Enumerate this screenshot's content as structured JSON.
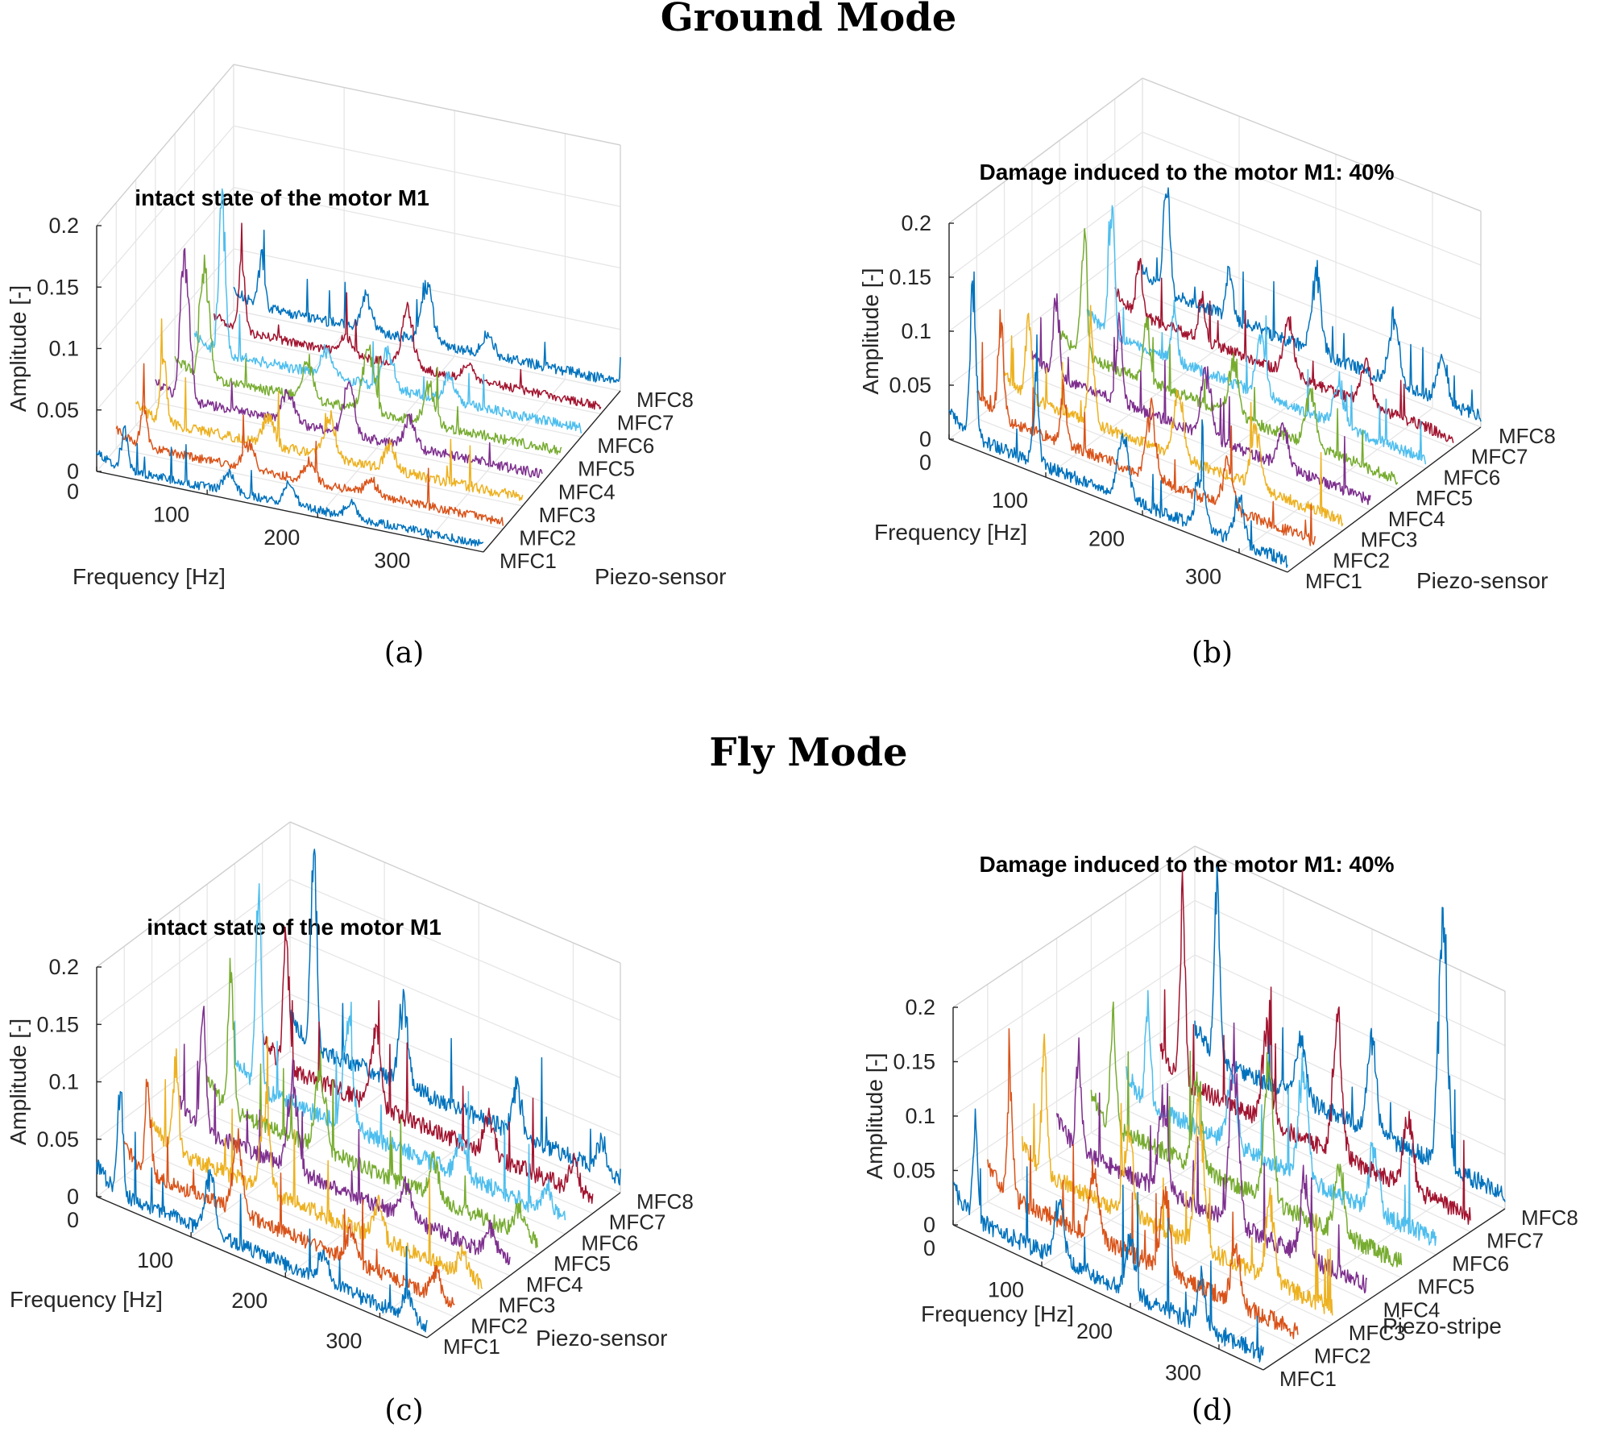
{
  "sections": {
    "ground_title": "Ground Mode",
    "fly_title": "Fly Mode"
  },
  "colors": {
    "MFC1": "#0072BD",
    "MFC2": "#D95319",
    "MFC3": "#EDB120",
    "MFC4": "#7E2F8E",
    "MFC5": "#77AC30",
    "MFC6": "#4DBEEE",
    "MFC7": "#A2142F",
    "MFC8": "#0072BD"
  },
  "chart_data": [
    {
      "id": "a",
      "type": "line",
      "caption": "(a)",
      "title": "intact state of the motor M1",
      "xlabel": "Frequency [Hz]",
      "ylabel": "Piezo-sensor",
      "zlabel": "Amplitude [-]",
      "xlim": [
        0,
        350
      ],
      "zlim": [
        0,
        0.2
      ],
      "x_ticks": [
        "0",
        "100",
        "200",
        "300"
      ],
      "z_ticks": [
        "0",
        "0.05",
        "0.1",
        "0.15",
        "0.2"
      ],
      "categories": [
        "MFC1",
        "MFC2",
        "MFC3",
        "MFC4",
        "MFC5",
        "MFC6",
        "MFC7",
        "MFC8"
      ],
      "series": [
        {
          "name": "MFC1",
          "noise": 0.006,
          "peaks": [
            [
              25,
              0.032
            ],
            [
              120,
              0.014
            ],
            [
              175,
              0.015
            ],
            [
              230,
              0.012
            ]
          ]
        },
        {
          "name": "MFC2",
          "noise": 0.006,
          "peaks": [
            [
              25,
              0.03
            ],
            [
              120,
              0.02
            ],
            [
              175,
              0.016
            ],
            [
              230,
              0.012
            ]
          ]
        },
        {
          "name": "MFC3",
          "noise": 0.007,
          "peaks": [
            [
              25,
              0.05
            ],
            [
              120,
              0.022
            ],
            [
              175,
              0.035
            ],
            [
              230,
              0.018
            ]
          ]
        },
        {
          "name": "MFC4",
          "noise": 0.007,
          "peaks": [
            [
              25,
              0.1
            ],
            [
              30,
              0.06
            ],
            [
              120,
              0.025
            ],
            [
              175,
              0.04
            ],
            [
              230,
              0.022
            ]
          ]
        },
        {
          "name": "MFC5",
          "noise": 0.007,
          "peaks": [
            [
              25,
              0.075
            ],
            [
              30,
              0.045
            ],
            [
              120,
              0.03
            ],
            [
              175,
              0.05
            ],
            [
              230,
              0.03
            ]
          ]
        },
        {
          "name": "MFC6",
          "noise": 0.007,
          "peaks": [
            [
              25,
              0.12
            ],
            [
              120,
              0.02
            ],
            [
              175,
              0.03
            ],
            [
              230,
              0.02
            ]
          ]
        },
        {
          "name": "MFC7",
          "noise": 0.006,
          "peaks": [
            [
              25,
              0.05
            ],
            [
              120,
              0.015
            ],
            [
              175,
              0.045
            ],
            [
              230,
              0.012
            ]
          ]
        },
        {
          "name": "MFC8",
          "noise": 0.007,
          "peaks": [
            [
              25,
              0.04
            ],
            [
              120,
              0.025
            ],
            [
              175,
              0.05
            ],
            [
              230,
              0.015
            ]
          ]
        }
      ]
    },
    {
      "id": "b",
      "type": "line",
      "caption": "(b)",
      "title": "Damage induced to the motor M1: 40%",
      "xlabel": "Frequency [Hz]",
      "ylabel": "Piezo-sensor",
      "zlabel": "Amplitude [-]",
      "xlim": [
        0,
        350
      ],
      "zlim": [
        0,
        0.2
      ],
      "x_ticks": [
        "0",
        "100",
        "200",
        "300"
      ],
      "z_ticks": [
        "0",
        "0.05",
        "0.1",
        "0.15",
        "0.2"
      ],
      "categories": [
        "MFC1",
        "MFC2",
        "MFC3",
        "MFC4",
        "MFC5",
        "MFC6",
        "MFC7",
        "MFC8"
      ],
      "series": [
        {
          "name": "MFC1",
          "noise": 0.01,
          "peaks": [
            [
              25,
              0.14
            ],
            [
              90,
              0.07
            ],
            [
              180,
              0.06
            ],
            [
              260,
              0.05
            ],
            [
              300,
              0.04
            ]
          ]
        },
        {
          "name": "MFC2",
          "noise": 0.009,
          "peaks": [
            [
              25,
              0.09
            ],
            [
              90,
              0.05
            ],
            [
              180,
              0.06
            ],
            [
              260,
              0.04
            ]
          ]
        },
        {
          "name": "MFC3",
          "noise": 0.009,
          "peaks": [
            [
              25,
              0.07
            ],
            [
              90,
              0.08
            ],
            [
              180,
              0.06
            ],
            [
              260,
              0.05
            ]
          ]
        },
        {
          "name": "MFC4",
          "noise": 0.009,
          "peaks": [
            [
              25,
              0.08
            ],
            [
              90,
              0.07
            ],
            [
              180,
              0.06
            ],
            [
              260,
              0.04
            ]
          ]
        },
        {
          "name": "MFC5",
          "noise": 0.009,
          "peaks": [
            [
              25,
              0.12
            ],
            [
              90,
              0.06
            ],
            [
              180,
              0.05
            ],
            [
              260,
              0.05
            ]
          ]
        },
        {
          "name": "MFC6",
          "noise": 0.009,
          "peaks": [
            [
              25,
              0.12
            ],
            [
              90,
              0.05
            ],
            [
              180,
              0.05
            ],
            [
              260,
              0.04
            ]
          ]
        },
        {
          "name": "MFC7",
          "noise": 0.009,
          "peaks": [
            [
              25,
              0.05
            ],
            [
              90,
              0.04
            ],
            [
              180,
              0.05
            ],
            [
              260,
              0.04
            ]
          ]
        },
        {
          "name": "MFC8",
          "noise": 0.01,
          "peaks": [
            [
              25,
              0.11
            ],
            [
              90,
              0.05
            ],
            [
              180,
              0.07
            ],
            [
              260,
              0.06
            ],
            [
              310,
              0.04
            ]
          ]
        }
      ]
    },
    {
      "id": "c",
      "type": "line",
      "caption": "(c)",
      "title": "intact state of the motor M1",
      "xlabel": "Frequency [Hz]",
      "ylabel": "Piezo-sensor",
      "zlabel": "Amplitude [-]",
      "xlim": [
        0,
        350
      ],
      "zlim": [
        0,
        0.2
      ],
      "x_ticks": [
        "0",
        "100",
        "200",
        "300"
      ],
      "z_ticks": [
        "0",
        "0.05",
        "0.1",
        "0.15",
        "0.2"
      ],
      "categories": [
        "MFC1",
        "MFC2",
        "MFC3",
        "MFC4",
        "MFC5",
        "MFC6",
        "MFC7",
        "MFC8"
      ],
      "series": [
        {
          "name": "MFC1",
          "noise": 0.011,
          "peaks": [
            [
              25,
              0.085
            ],
            [
              120,
              0.05
            ],
            [
              240,
              0.025
            ],
            [
              330,
              0.02
            ]
          ]
        },
        {
          "name": "MFC2",
          "noise": 0.011,
          "peaks": [
            [
              25,
              0.075
            ],
            [
              120,
              0.06
            ],
            [
              240,
              0.025
            ],
            [
              330,
              0.02
            ]
          ]
        },
        {
          "name": "MFC3",
          "noise": 0.012,
          "peaks": [
            [
              25,
              0.08
            ],
            [
              120,
              0.07
            ],
            [
              240,
              0.03
            ],
            [
              330,
              0.02
            ]
          ]
        },
        {
          "name": "MFC4",
          "noise": 0.012,
          "peaks": [
            [
              25,
              0.1
            ],
            [
              120,
              0.08
            ],
            [
              240,
              0.03
            ],
            [
              330,
              0.02
            ]
          ]
        },
        {
          "name": "MFC5",
          "noise": 0.012,
          "peaks": [
            [
              25,
              0.12
            ],
            [
              120,
              0.07
            ],
            [
              240,
              0.03
            ],
            [
              330,
              0.02
            ]
          ]
        },
        {
          "name": "MFC6",
          "noise": 0.013,
          "peaks": [
            [
              25,
              0.17
            ],
            [
              120,
              0.09
            ],
            [
              240,
              0.03
            ],
            [
              330,
              0.02
            ]
          ]
        },
        {
          "name": "MFC7",
          "noise": 0.013,
          "peaks": [
            [
              25,
              0.12
            ],
            [
              120,
              0.07
            ],
            [
              240,
              0.035
            ],
            [
              330,
              0.025
            ]
          ]
        },
        {
          "name": "MFC8",
          "noise": 0.013,
          "peaks": [
            [
              25,
              0.18
            ],
            [
              120,
              0.07
            ],
            [
              240,
              0.04
            ],
            [
              330,
              0.025
            ]
          ]
        }
      ]
    },
    {
      "id": "d",
      "type": "line",
      "caption": "(d)",
      "title": "Damage induced to the motor M1: 40%",
      "xlabel": "Frequency [Hz]",
      "ylabel": "Piezo-stripe",
      "zlabel": "Amplitude [-]",
      "xlim": [
        0,
        350
      ],
      "zlim": [
        0,
        0.2
      ],
      "x_ticks": [
        "0",
        "100",
        "200",
        "300"
      ],
      "z_ticks": [
        "0",
        "0.05",
        "0.1",
        "0.15",
        "0.2"
      ],
      "categories": [
        "MFC1",
        "MFC2",
        "MFC3",
        "MFC4",
        "MFC5",
        "MFC6",
        "MFC7",
        "MFC8"
      ],
      "series": [
        {
          "name": "MFC1",
          "noise": 0.014,
          "peaks": [
            [
              25,
              0.09
            ],
            [
              120,
              0.05
            ],
            [
              200,
              0.05
            ],
            [
              280,
              0.04
            ]
          ]
        },
        {
          "name": "MFC2",
          "noise": 0.014,
          "peaks": [
            [
              25,
              0.1
            ],
            [
              120,
              0.06
            ],
            [
              200,
              0.07
            ],
            [
              280,
              0.05
            ]
          ]
        },
        {
          "name": "MFC3",
          "noise": 0.014,
          "peaks": [
            [
              25,
              0.11
            ],
            [
              120,
              0.07
            ],
            [
              200,
              0.12
            ],
            [
              280,
              0.07
            ]
          ]
        },
        {
          "name": "MFC4",
          "noise": 0.014,
          "peaks": [
            [
              25,
              0.09
            ],
            [
              120,
              0.08
            ],
            [
              200,
              0.15
            ],
            [
              280,
              0.07
            ]
          ]
        },
        {
          "name": "MFC5",
          "noise": 0.014,
          "peaks": [
            [
              25,
              0.1
            ],
            [
              120,
              0.08
            ],
            [
              200,
              0.12
            ],
            [
              280,
              0.06
            ]
          ]
        },
        {
          "name": "MFC6",
          "noise": 0.014,
          "peaks": [
            [
              25,
              0.09
            ],
            [
              120,
              0.07
            ],
            [
              200,
              0.1
            ],
            [
              280,
              0.06
            ]
          ]
        },
        {
          "name": "MFC7",
          "noise": 0.014,
          "peaks": [
            [
              25,
              0.16
            ],
            [
              120,
              0.08
            ],
            [
              200,
              0.12
            ],
            [
              280,
              0.07
            ]
          ]
        },
        {
          "name": "MFC8",
          "noise": 0.014,
          "peaks": [
            [
              25,
              0.17
            ],
            [
              120,
              0.06
            ],
            [
              200,
              0.08
            ],
            [
              280,
              0.22
            ]
          ]
        }
      ]
    }
  ]
}
